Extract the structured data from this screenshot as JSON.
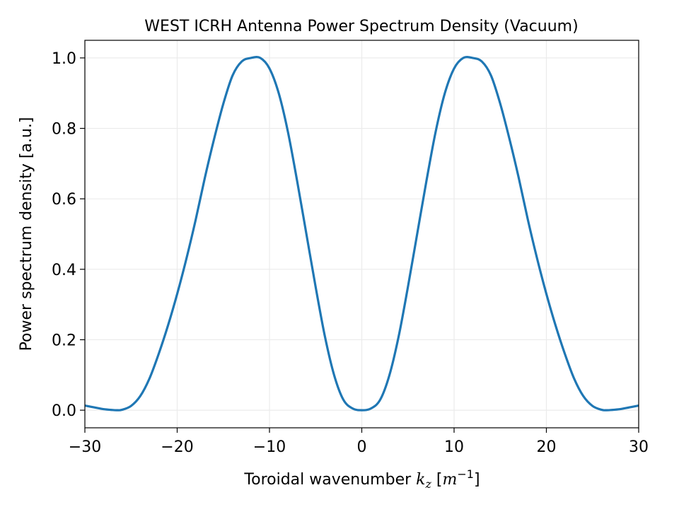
{
  "chart_data": {
    "type": "line",
    "title": "WEST ICRH Antenna Power Spectrum Density (Vacuum)",
    "xlabel": {
      "prefix": "Toroidal wavenumber ",
      "var": "k",
      "var_sub": "z",
      "unit_open": " [",
      "unit_var": "m",
      "unit_sup": "−1",
      "unit_close": "]"
    },
    "ylabel": "Power spectrum density [a.u.]",
    "xlim": [
      -30,
      30
    ],
    "ylim": [
      -0.05,
      1.05
    ],
    "xticks": [
      -30,
      -20,
      -10,
      0,
      10,
      20,
      30
    ],
    "xtick_labels": [
      "−30",
      "−20",
      "−10",
      "0",
      "10",
      "20",
      "30"
    ],
    "yticks": [
      0.0,
      0.2,
      0.4,
      0.6,
      0.8,
      1.0
    ],
    "ytick_labels": [
      "0.0",
      "0.2",
      "0.4",
      "0.6",
      "0.8",
      "1.0"
    ],
    "grid": true,
    "line_color": "#1f77b4",
    "series": [
      {
        "x": [
          -30,
          -29,
          -28,
          -27,
          -26.5,
          -26,
          -25,
          -24,
          -23,
          -22,
          -21,
          -20,
          -19,
          -18,
          -17,
          -16,
          -15,
          -14,
          -13,
          -12,
          -11,
          -10,
          -9,
          -8,
          -7,
          -6,
          -5,
          -4,
          -3,
          -2,
          -1,
          0,
          1,
          2,
          3,
          4,
          5,
          6,
          7,
          8,
          9,
          10,
          11,
          12,
          13,
          14,
          15,
          16,
          17,
          18,
          19,
          20,
          21,
          22,
          23,
          24,
          25,
          26,
          26.5,
          27,
          28,
          29,
          30
        ],
        "y": [
          0.013,
          0.008,
          0.003,
          0.0005,
          0.0,
          0.001,
          0.012,
          0.04,
          0.09,
          0.16,
          0.24,
          0.33,
          0.43,
          0.54,
          0.66,
          0.77,
          0.87,
          0.95,
          0.99,
          1.0,
          1.0,
          0.97,
          0.9,
          0.79,
          0.65,
          0.5,
          0.35,
          0.21,
          0.1,
          0.03,
          0.005,
          0.0,
          0.005,
          0.03,
          0.1,
          0.21,
          0.35,
          0.5,
          0.65,
          0.79,
          0.9,
          0.97,
          1.0,
          1.0,
          0.99,
          0.95,
          0.87,
          0.77,
          0.66,
          0.54,
          0.43,
          0.33,
          0.24,
          0.16,
          0.09,
          0.04,
          0.012,
          0.001,
          0.0,
          0.0005,
          0.003,
          0.008,
          0.013
        ]
      }
    ]
  }
}
